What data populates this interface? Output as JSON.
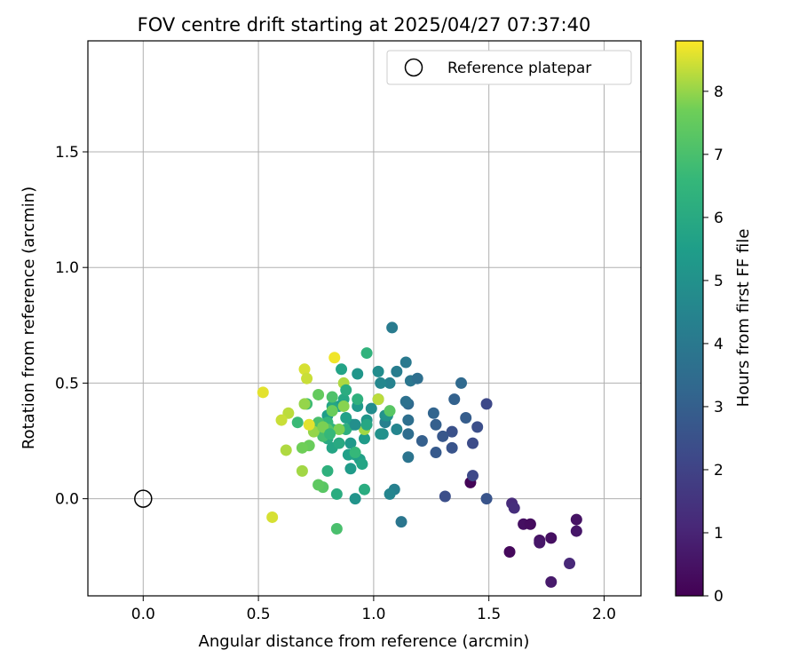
{
  "chart_data": {
    "type": "scatter",
    "title": "FOV centre drift starting at 2025/04/27 07:37:40",
    "xlabel": "Angular distance from reference (arcmin)",
    "ylabel": "Rotation from reference (arcmin)",
    "xlim": [
      -0.24,
      2.16
    ],
    "ylim": [
      -0.42,
      1.98
    ],
    "xticks": [
      "0.0",
      "0.5",
      "1.0",
      "1.5",
      "2.0"
    ],
    "yticks": [
      "0.0",
      "0.5",
      "1.0",
      "1.5"
    ],
    "grid": true,
    "legend": {
      "placement": "top-right",
      "entries": [
        {
          "label": "Reference platepar",
          "marker": "open-circle"
        }
      ]
    },
    "reference": {
      "x": 0.0,
      "y": 0.0
    },
    "colorbar": {
      "label": "Hours from first FF file",
      "colormap": "viridis",
      "range": [
        0,
        8.8
      ],
      "ticks": [
        "0",
        "1",
        "2",
        "3",
        "4",
        "5",
        "6",
        "7",
        "8"
      ]
    },
    "series": [
      {
        "columns": [
          "x",
          "y",
          "hours"
        ],
        "points": [
          [
            1.42,
            0.07,
            0.1
          ],
          [
            1.59,
            -0.23,
            0.2
          ],
          [
            1.65,
            -0.11,
            0.4
          ],
          [
            1.68,
            -0.11,
            0.3
          ],
          [
            1.72,
            -0.18,
            0.5
          ],
          [
            1.72,
            -0.19,
            0.6
          ],
          [
            1.77,
            -0.17,
            0.4
          ],
          [
            1.77,
            -0.36,
            0.7
          ],
          [
            1.85,
            -0.28,
            1.1
          ],
          [
            1.88,
            -0.09,
            0.5
          ],
          [
            1.88,
            -0.14,
            0.6
          ],
          [
            1.6,
            -0.02,
            1.2
          ],
          [
            1.61,
            -0.04,
            1.3
          ],
          [
            1.49,
            0.0,
            2.6
          ],
          [
            1.43,
            0.1,
            2.2
          ],
          [
            1.43,
            0.24,
            2.3
          ],
          [
            1.45,
            0.31,
            2.4
          ],
          [
            1.49,
            0.41,
            2.2
          ],
          [
            1.34,
            0.29,
            2.5
          ],
          [
            1.34,
            0.22,
            2.6
          ],
          [
            1.3,
            0.27,
            2.7
          ],
          [
            1.27,
            0.2,
            2.8
          ],
          [
            1.31,
            0.01,
            2.4
          ],
          [
            1.27,
            0.32,
            3.0
          ],
          [
            1.26,
            0.37,
            3.2
          ],
          [
            1.21,
            0.25,
            3.0
          ],
          [
            1.35,
            0.43,
            3.1
          ],
          [
            1.38,
            0.5,
            3.4
          ],
          [
            1.4,
            0.35,
            2.9
          ],
          [
            1.15,
            0.28,
            3.5
          ],
          [
            1.15,
            0.34,
            3.6
          ],
          [
            1.15,
            0.18,
            3.8
          ],
          [
            1.15,
            0.41,
            3.4
          ],
          [
            1.14,
            0.42,
            3.7
          ],
          [
            1.16,
            0.51,
            3.9
          ],
          [
            1.19,
            0.52,
            3.6
          ],
          [
            1.14,
            0.59,
            4.0
          ],
          [
            1.1,
            0.55,
            4.2
          ],
          [
            1.08,
            0.74,
            4.1
          ],
          [
            1.12,
            -0.1,
            3.9
          ],
          [
            1.09,
            0.04,
            4.3
          ],
          [
            1.07,
            0.02,
            4.5
          ],
          [
            1.05,
            0.33,
            4.3
          ],
          [
            1.07,
            0.5,
            4.4
          ],
          [
            1.03,
            0.5,
            4.6
          ],
          [
            1.02,
            0.43,
            4.7
          ],
          [
            1.02,
            0.55,
            4.8
          ],
          [
            1.04,
            0.28,
            4.9
          ],
          [
            1.05,
            0.36,
            5.0
          ],
          [
            1.06,
            0.36,
            5.1
          ],
          [
            1.03,
            0.28,
            5.0
          ],
          [
            0.97,
            0.34,
            5.2
          ],
          [
            0.96,
            0.26,
            5.4
          ],
          [
            0.93,
            0.4,
            5.3
          ],
          [
            0.93,
            0.54,
            5.2
          ],
          [
            0.91,
            0.32,
            5.5
          ],
          [
            0.9,
            0.24,
            5.3
          ],
          [
            0.89,
            0.19,
            5.6
          ],
          [
            0.9,
            0.13,
            5.4
          ],
          [
            0.92,
            0.0,
            5.1
          ],
          [
            0.92,
            0.19,
            5.7
          ],
          [
            0.94,
            0.17,
            5.6
          ],
          [
            0.95,
            0.15,
            5.8
          ],
          [
            0.86,
            0.56,
            5.7
          ],
          [
            0.87,
            0.43,
            5.9
          ],
          [
            0.88,
            0.35,
            5.6
          ],
          [
            0.85,
            0.4,
            5.5
          ],
          [
            0.82,
            0.4,
            5.8
          ],
          [
            0.8,
            0.36,
            5.5
          ],
          [
            0.8,
            0.26,
            6.0
          ],
          [
            0.82,
            0.22,
            5.8
          ],
          [
            0.85,
            0.24,
            6.0
          ],
          [
            0.84,
            0.02,
            6.1
          ],
          [
            0.8,
            0.12,
            6.3
          ],
          [
            0.96,
            0.04,
            6.1
          ],
          [
            0.88,
            0.3,
            6.2
          ],
          [
            0.82,
            0.3,
            6.4
          ],
          [
            0.8,
            0.33,
            6.5
          ],
          [
            0.93,
            0.43,
            6.3
          ],
          [
            0.97,
            0.63,
            6.4
          ],
          [
            0.92,
            0.2,
            6.6
          ],
          [
            0.67,
            0.33,
            6.7
          ],
          [
            0.71,
            0.41,
            6.8
          ],
          [
            0.78,
            0.27,
            6.9
          ],
          [
            0.76,
            0.33,
            7.0
          ],
          [
            0.84,
            -0.13,
            7.0
          ],
          [
            0.82,
            0.44,
            7.1
          ],
          [
            0.8,
            0.3,
            7.2
          ],
          [
            0.78,
            0.05,
            7.3
          ],
          [
            0.76,
            0.06,
            7.4
          ],
          [
            0.76,
            0.45,
            7.5
          ],
          [
            0.72,
            0.23,
            7.6
          ],
          [
            0.69,
            0.22,
            7.7
          ],
          [
            0.82,
            0.38,
            7.6
          ],
          [
            0.85,
            0.3,
            7.8
          ],
          [
            0.87,
            0.4,
            7.9
          ],
          [
            0.74,
            0.29,
            8.0
          ],
          [
            0.7,
            0.41,
            8.0
          ],
          [
            0.69,
            0.12,
            8.1
          ],
          [
            0.62,
            0.21,
            8.2
          ],
          [
            0.63,
            0.37,
            8.3
          ],
          [
            0.6,
            0.34,
            8.4
          ],
          [
            0.56,
            -0.08,
            8.5
          ],
          [
            0.52,
            0.46,
            8.6
          ],
          [
            0.7,
            0.56,
            8.5
          ],
          [
            0.71,
            0.52,
            8.4
          ],
          [
            0.72,
            0.32,
            8.6
          ],
          [
            0.83,
            0.61,
            8.7
          ],
          [
            0.87,
            0.5,
            8.2
          ],
          [
            0.96,
            0.3,
            8.1
          ],
          [
            1.07,
            0.38,
            7.3
          ],
          [
            1.02,
            0.43,
            8.3
          ],
          [
            0.78,
            0.31,
            7.8
          ],
          [
            0.81,
            0.28,
            6.6
          ],
          [
            0.97,
            0.32,
            5.9
          ],
          [
            0.88,
            0.47,
            6.1
          ],
          [
            0.92,
            0.32,
            4.9
          ],
          [
            0.99,
            0.39,
            4.8
          ],
          [
            1.1,
            0.3,
            4.5
          ]
        ]
      }
    ]
  }
}
